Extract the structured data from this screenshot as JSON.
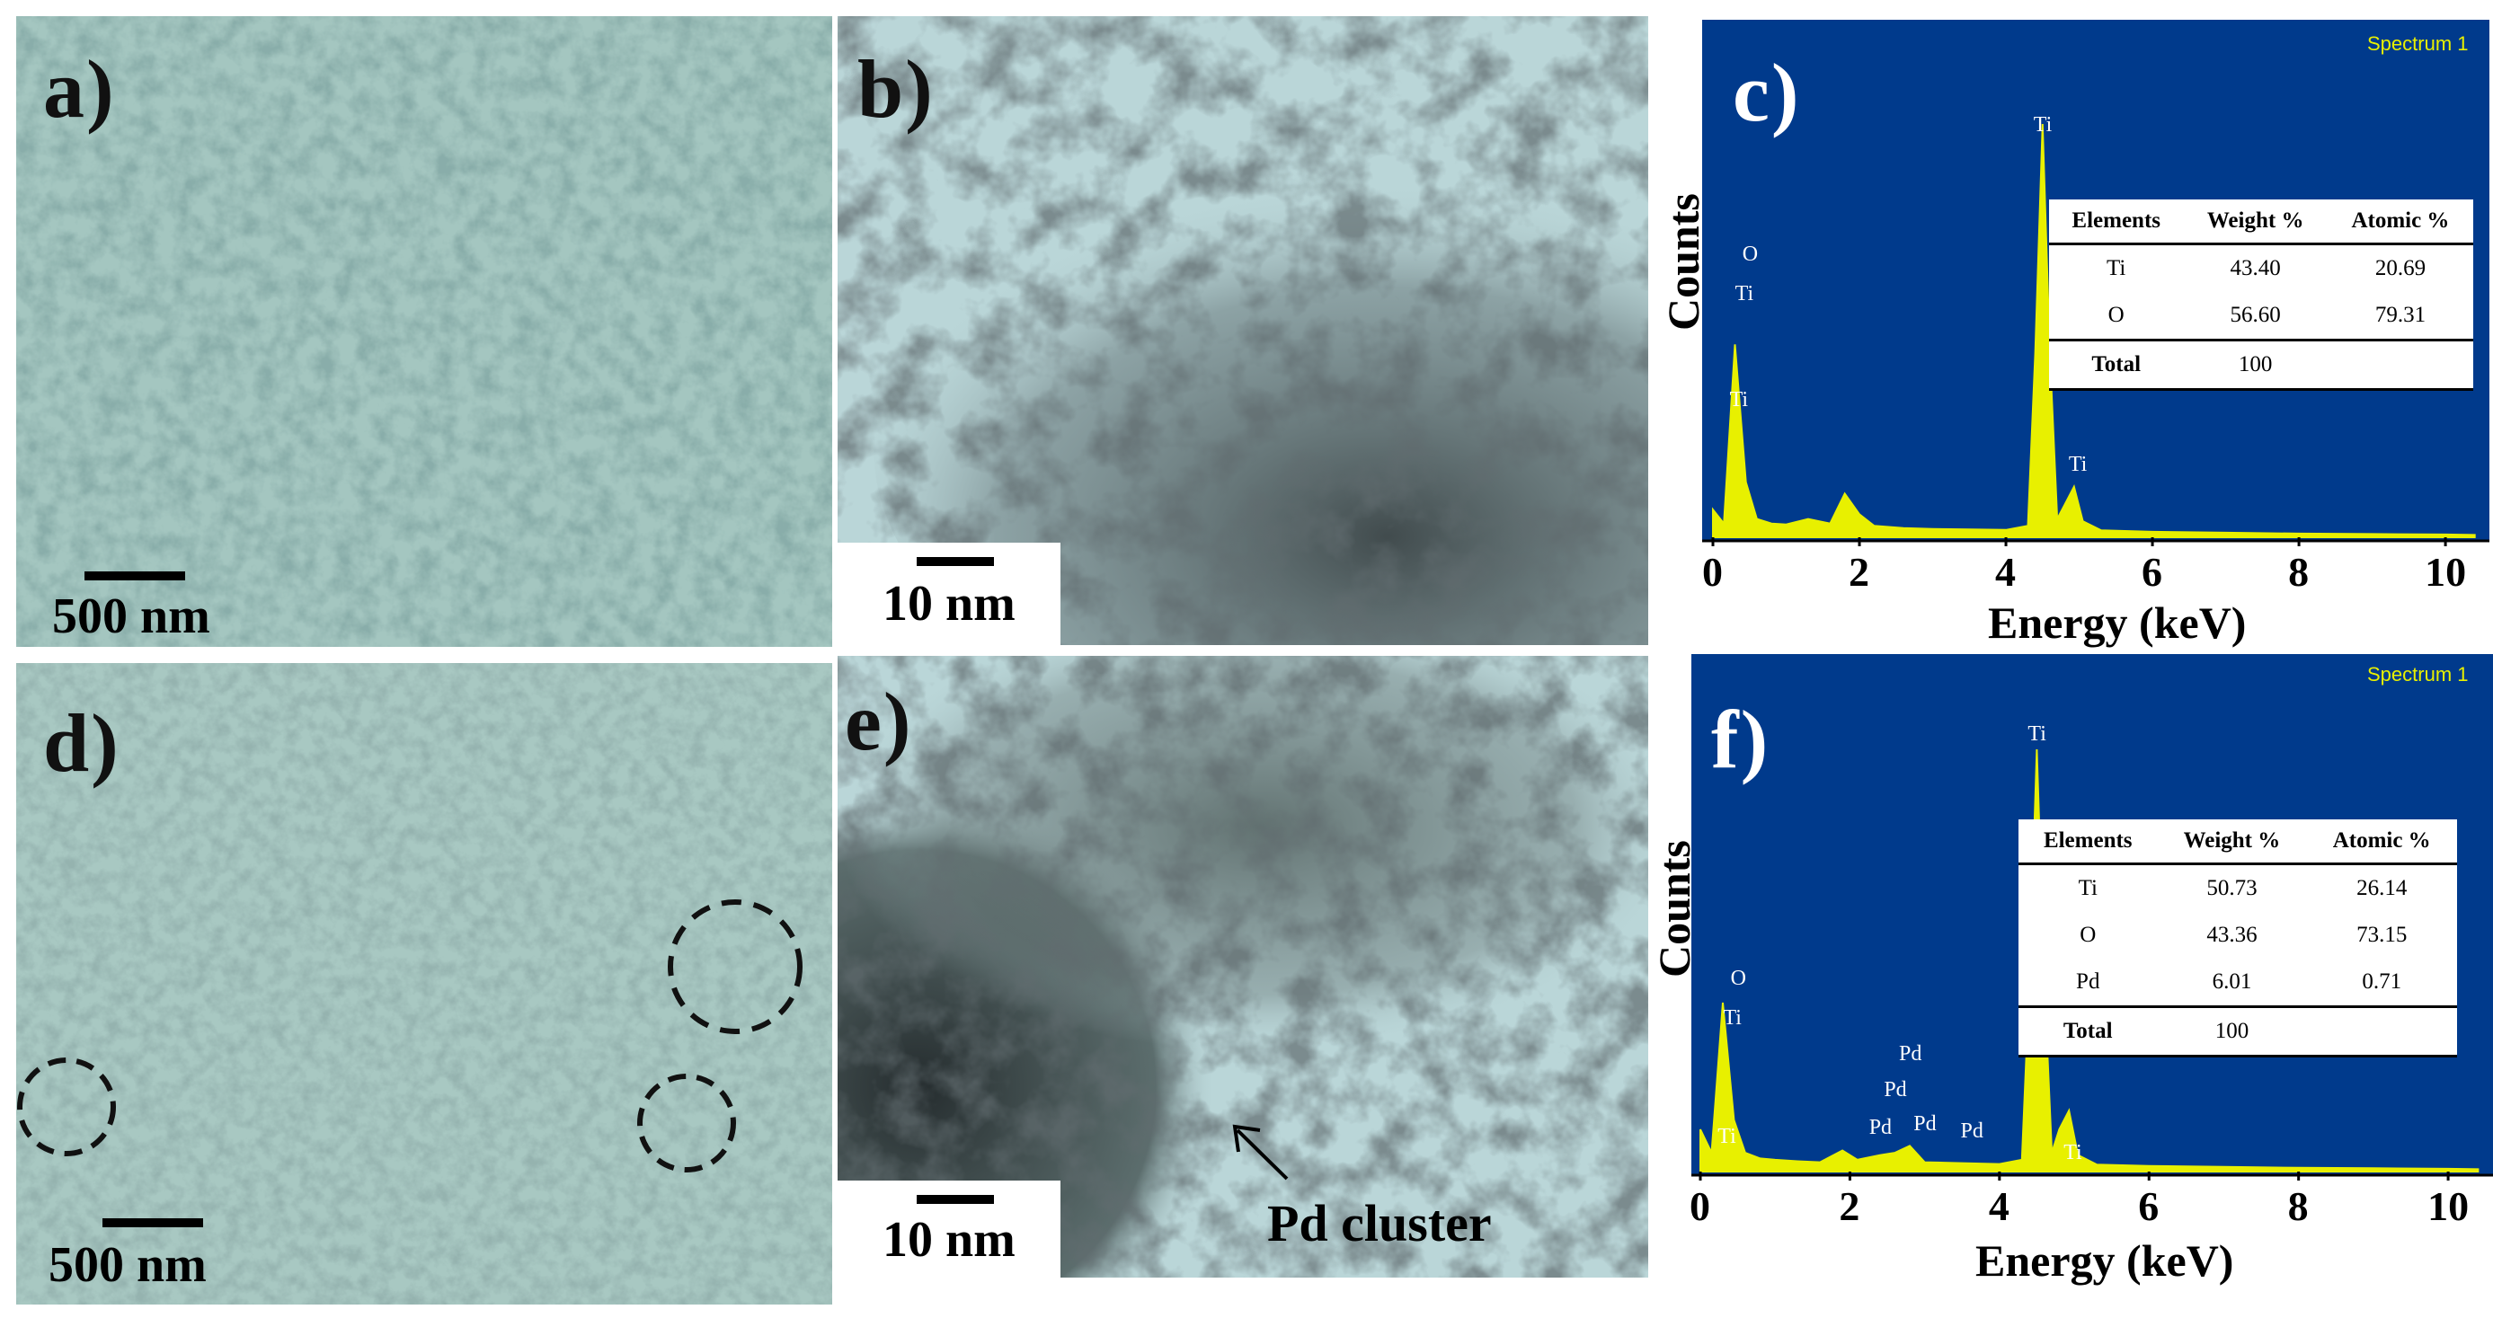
{
  "panels": {
    "a": {
      "label": "a)",
      "scale": "500 nm"
    },
    "b": {
      "label": "b)",
      "scale": "10 nm"
    },
    "c": {
      "label": "c)",
      "spectrum": "Spectrum 1",
      "ylabel": "Counts",
      "xlabel": "Energy (keV)",
      "ticks": [
        "0",
        "2",
        "4",
        "6",
        "8",
        "10"
      ]
    },
    "d": {
      "label": "d)",
      "scale": "500 nm"
    },
    "e": {
      "label": "e)",
      "scale": "10 nm",
      "annotation": "Pd cluster"
    },
    "f": {
      "label": "f)",
      "spectrum": "Spectrum 1",
      "ylabel": "Counts",
      "xlabel": "Energy (keV)",
      "ticks": [
        "0",
        "2",
        "4",
        "6",
        "8",
        "10"
      ]
    }
  },
  "colors": {
    "plot_bg": "#003a8c",
    "spectrum": "#e8f000",
    "sem": "#8fb6b0",
    "tem": "#b8d4d6"
  },
  "table_c": {
    "headers": [
      "Elements",
      "Weight %",
      "Atomic %"
    ],
    "rows": [
      [
        "Ti",
        "43.40",
        "20.69"
      ],
      [
        "O",
        "56.60",
        "79.31"
      ]
    ],
    "total": [
      "Total",
      "100"
    ]
  },
  "table_f": {
    "headers": [
      "Elements",
      "Weight %",
      "Atomic %"
    ],
    "rows": [
      [
        "Ti",
        "50.73",
        "26.14"
      ],
      [
        "O",
        "43.36",
        "73.15"
      ],
      [
        "Pd",
        "6.01",
        "0.71"
      ]
    ],
    "total": [
      "Total",
      "100"
    ]
  },
  "peaks_c": [
    {
      "label": "O",
      "kev": 0.5
    },
    {
      "label": "Ti",
      "kev": 0.45
    },
    {
      "label": "Ti",
      "kev": 0.4
    },
    {
      "label": "Ti",
      "kev": 4.5
    },
    {
      "label": "Ti",
      "kev": 4.93
    }
  ],
  "peaks_f": [
    {
      "label": "O",
      "kev": 0.5
    },
    {
      "label": "Ti",
      "kev": 0.45
    },
    {
      "label": "Ti",
      "kev": 0.4
    },
    {
      "label": "Pd",
      "kev": 2.8
    },
    {
      "label": "Pd",
      "kev": 2.6
    },
    {
      "label": "Pd",
      "kev": 2.4
    },
    {
      "label": "Pd",
      "kev": 2.9
    },
    {
      "label": "Pd",
      "kev": 3.6
    },
    {
      "label": "Ti",
      "kev": 4.5
    },
    {
      "label": "Ti",
      "kev": 4.93
    }
  ],
  "chart_data": [
    {
      "type": "line",
      "title": "",
      "xlabel": "Energy (keV)",
      "ylabel": "Counts",
      "xlim": [
        0,
        10.4
      ],
      "legend": "Spectrum 1",
      "series": [
        {
          "name": "Spectrum 1",
          "x": [
            0.0,
            0.15,
            0.3,
            0.45,
            0.6,
            0.8,
            1.0,
            1.3,
            1.6,
            1.8,
            2.0,
            2.2,
            2.6,
            3.0,
            3.5,
            4.0,
            4.3,
            4.4,
            4.5,
            4.6,
            4.7,
            4.8,
            4.93,
            5.05,
            5.3,
            6.0,
            7.0,
            8.0,
            9.0,
            10.0,
            10.4
          ],
          "y": [
            60,
            30,
            420,
            120,
            40,
            30,
            28,
            40,
            30,
            95,
            50,
            25,
            20,
            18,
            17,
            16,
            25,
            400,
            900,
            400,
            40,
            70,
            110,
            35,
            15,
            12,
            10,
            8,
            7,
            6,
            5
          ]
        }
      ]
    },
    {
      "type": "line",
      "title": "",
      "xlabel": "Energy (keV)",
      "ylabel": "Counts",
      "xlim": [
        0,
        10.4
      ],
      "legend": "Spectrum 1",
      "series": [
        {
          "name": "Spectrum 1",
          "x": [
            0.0,
            0.15,
            0.3,
            0.45,
            0.6,
            0.8,
            1.0,
            1.3,
            1.6,
            1.9,
            2.1,
            2.4,
            2.6,
            2.8,
            3.0,
            3.5,
            4.0,
            4.3,
            4.4,
            4.5,
            4.6,
            4.7,
            4.8,
            4.93,
            5.05,
            5.3,
            6.0,
            7.0,
            8.0,
            9.0,
            10.0,
            10.4
          ],
          "y": [
            90,
            40,
            360,
            110,
            40,
            28,
            25,
            22,
            20,
            45,
            25,
            35,
            40,
            55,
            20,
            18,
            16,
            25,
            400,
            900,
            400,
            40,
            90,
            130,
            35,
            15,
            12,
            10,
            8,
            7,
            6,
            5
          ]
        }
      ]
    }
  ]
}
